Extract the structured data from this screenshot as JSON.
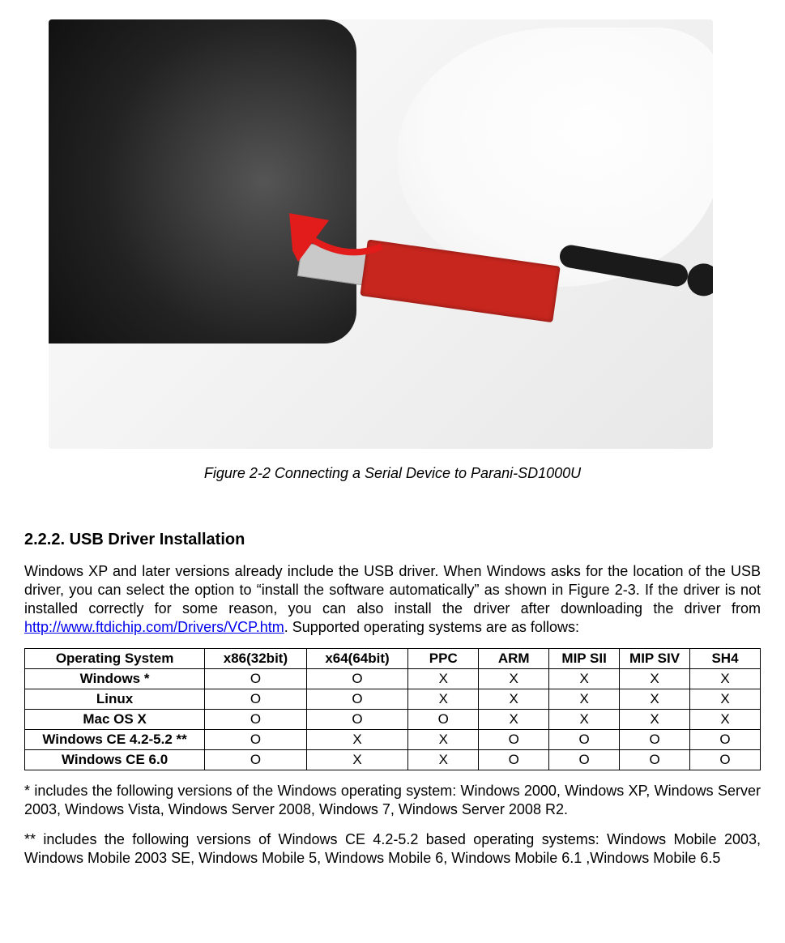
{
  "figure": {
    "caption": "Figure 2-2 Connecting a Serial Device to Parani-SD1000U",
    "laptop_color": "#222222",
    "usb_body_color": "#c7261e",
    "usb_plug_color": "#c9c9c9",
    "antenna_color": "#1a1a1a",
    "arrow_color": "#e21b1b"
  },
  "section": {
    "heading": "2.2.2. USB Driver Installation",
    "para1_part1": "Windows XP and later versions already include the USB driver. When Windows asks for the location of the USB driver, you can select the option to “install the software automatically” as shown in Figure 2-3. If the driver is not installed correctly for some reason, you can also install the driver after downloading the driver from ",
    "driver_link_text": "http://www.ftdichip.com/Drivers/VCP.htm",
    "driver_link_href": "http://www.ftdichip.com/Drivers/VCP.htm",
    "para1_part2": ". Supported operating systems are as follows:",
    "footnote1": "* includes the following versions of the Windows operating system: Windows 2000, Windows XP, Windows Server 2003, Windows Vista, Windows Server 2008, Windows 7, Windows Server 2008 R2.",
    "footnote2": "** includes the following versions of Windows CE 4.2-5.2 based operating systems: Windows Mobile 2003, Windows Mobile 2003 SE, Windows Mobile 5, Windows Mobile 6, Windows Mobile 6.1 ,Windows Mobile 6.5"
  },
  "table": {
    "headers": [
      "Operating System",
      "x86(32bit)",
      "x64(64bit)",
      "PPC",
      "ARM",
      "MIP SII",
      "MIP SIV",
      "SH4"
    ],
    "rows": [
      {
        "label": "Windows *",
        "cells": [
          "O",
          "O",
          "X",
          "X",
          "X",
          "X",
          "X"
        ]
      },
      {
        "label": "Linux",
        "cells": [
          "O",
          "O",
          "X",
          "X",
          "X",
          "X",
          "X"
        ]
      },
      {
        "label": "Mac OS X",
        "cells": [
          "O",
          "O",
          "O",
          "X",
          "X",
          "X",
          "X"
        ]
      },
      {
        "label": "Windows CE 4.2-5.2 **",
        "cells": [
          "O",
          "X",
          "X",
          "O",
          "O",
          "O",
          "O"
        ]
      },
      {
        "label": "Windows CE 6.0",
        "cells": [
          "O",
          "X",
          "X",
          "O",
          "O",
          "O",
          "O"
        ]
      }
    ],
    "col_widths_pct": [
      23,
      13,
      13,
      9,
      9,
      11,
      11,
      9
    ],
    "border_color": "#000000",
    "header_fontweight": "bold",
    "cell_fontsize_pt": 12
  },
  "typography": {
    "heading_fontsize_pt": 15,
    "body_fontsize_pt": 13,
    "caption_style": "italic",
    "text_color": "#000000",
    "link_color": "#0000ee",
    "font_family": "Arial"
  }
}
